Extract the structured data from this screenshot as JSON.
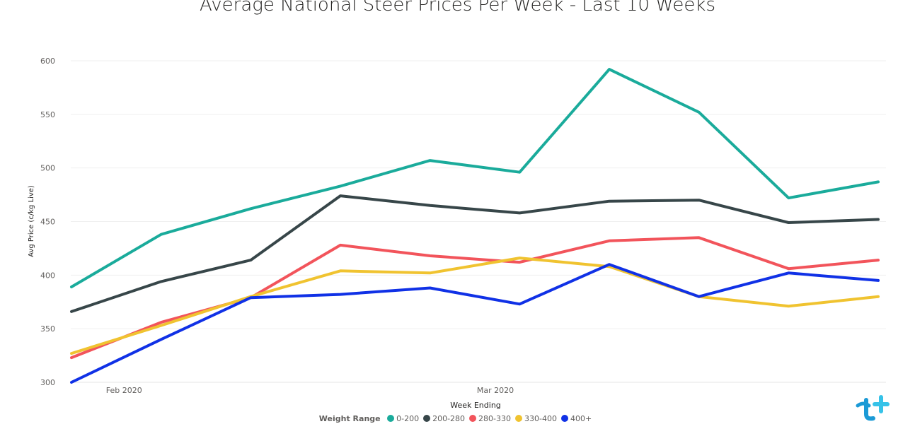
{
  "chart_data": {
    "type": "line",
    "title": "Average National Steer Prices Per Week - Last 10 Weeks",
    "xlabel": "Week Ending",
    "ylabel": "Avg Price (c/kg Live)",
    "x_tick_labels": [
      "Feb 2020",
      "Mar 2020"
    ],
    "x": [
      "2020-01-29",
      "2020-02-05",
      "2020-02-12",
      "2020-02-19",
      "2020-02-26",
      "2020-03-04",
      "2020-03-11",
      "2020-03-18",
      "2020-03-25",
      "2020-04-01"
    ],
    "ylim": [
      300,
      600
    ],
    "yticks": [
      300,
      350,
      400,
      450,
      500,
      550,
      600
    ],
    "grid": true,
    "legend": {
      "title": "Weight Range",
      "position": "bottom"
    },
    "series": [
      {
        "name": "0-200",
        "color": "#1aab9b",
        "values": [
          389,
          438,
          462,
          483,
          507,
          496,
          592,
          552,
          472,
          487
        ]
      },
      {
        "name": "200-280",
        "color": "#374649",
        "values": [
          366,
          394,
          414,
          474,
          465,
          458,
          469,
          470,
          449,
          452
        ]
      },
      {
        "name": "280-330",
        "color": "#f2545b",
        "values": [
          323,
          356,
          379,
          428,
          418,
          412,
          432,
          435,
          406,
          414
        ]
      },
      {
        "name": "330-400",
        "color": "#f0c330",
        "values": [
          327,
          353,
          380,
          404,
          402,
          416,
          408,
          380,
          371,
          380
        ]
      },
      {
        "name": "400+",
        "color": "#1031e6",
        "values": [
          300,
          340,
          379,
          382,
          388,
          373,
          410,
          380,
          402,
          395
        ]
      }
    ]
  }
}
